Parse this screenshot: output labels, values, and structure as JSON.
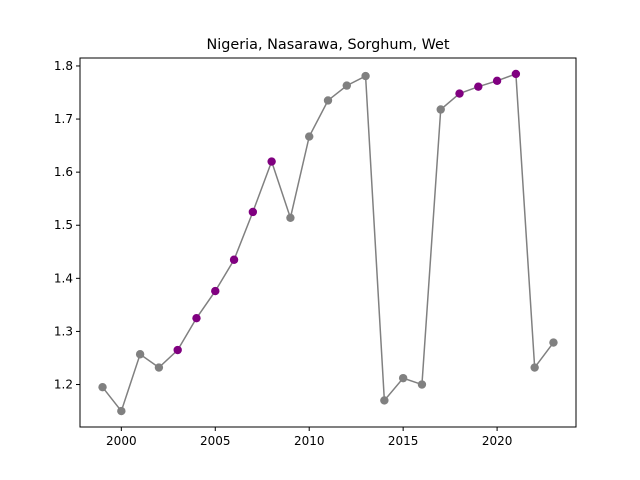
{
  "chart_data": {
    "type": "line",
    "title": "Nigeria, Nasarawa, Sorghum, Wet",
    "xlabel": "",
    "ylabel": "",
    "xlim": [
      1997.8,
      2024.2
    ],
    "ylim": [
      1.12,
      1.815
    ],
    "xticks": [
      2000,
      2005,
      2010,
      2015,
      2020
    ],
    "yticks": [
      1.2,
      1.3,
      1.4,
      1.5,
      1.6,
      1.7,
      1.8
    ],
    "grid": false,
    "legend": "none",
    "line_color": "#808080",
    "point_colors": {
      "normal": "#808080",
      "highlight": "#800080"
    },
    "series": [
      {
        "x": [
          1999,
          2000,
          2001,
          2002,
          2003,
          2004,
          2005,
          2006,
          2007,
          2008,
          2009,
          2010,
          2011,
          2012,
          2013,
          2014,
          2015,
          2016,
          2017,
          2018,
          2019,
          2020,
          2021,
          2022,
          2023
        ],
        "values": [
          1.195,
          1.15,
          1.257,
          1.232,
          1.265,
          1.325,
          1.376,
          1.435,
          1.525,
          1.62,
          1.514,
          1.667,
          1.735,
          1.763,
          1.781,
          1.17,
          1.212,
          1.2,
          1.718,
          1.748,
          1.761,
          1.772,
          1.785,
          1.232,
          1.279
        ],
        "highlight": [
          false,
          false,
          false,
          false,
          true,
          true,
          true,
          true,
          true,
          true,
          false,
          false,
          false,
          false,
          false,
          false,
          false,
          false,
          false,
          true,
          true,
          true,
          true,
          false,
          false
        ]
      }
    ]
  }
}
